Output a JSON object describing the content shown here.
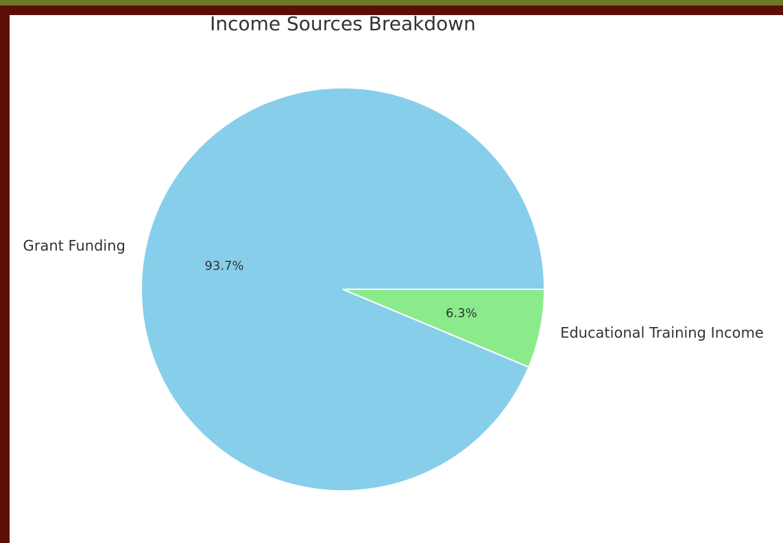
{
  "chart_data": {
    "type": "pie",
    "title": "Income Sources Breakdown",
    "slices": [
      {
        "label": "Grant Funding",
        "value": 93.7,
        "pct_label": "93.7%",
        "color": "#87ceeb"
      },
      {
        "label": "Educational Training Income",
        "value": 6.3,
        "pct_label": "6.3%",
        "color": "#8beb8b"
      }
    ],
    "start_angle_deg": 0,
    "direction": "counterclockwise",
    "legend": "none"
  },
  "colors": {
    "frame_outer": "#6b7a2a",
    "frame_inner": "#5a0e06",
    "background": "#ffffff",
    "text": "#333333",
    "slice_edge": "#ffffff"
  }
}
